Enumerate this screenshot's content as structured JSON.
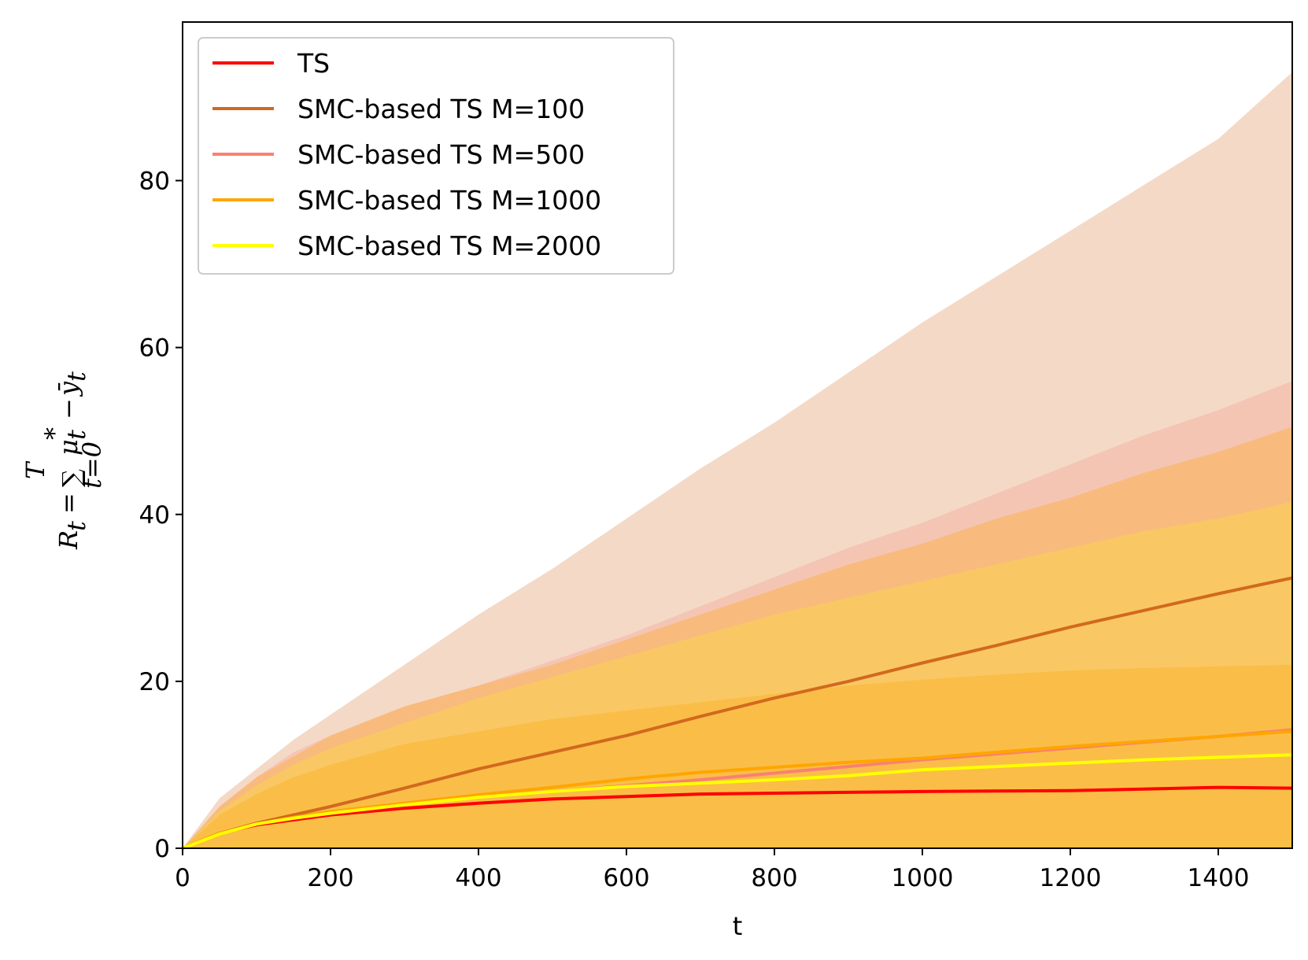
{
  "chart_data": {
    "type": "line",
    "title": "",
    "xlabel": "t",
    "ylabel": "R_t = Σ_{t=0}^{T} μ_t* − ȳ_t",
    "ylabel_parts": {
      "lhs": "R",
      "lhs_sub": "t",
      "eq": "=",
      "sum": "∑",
      "sum_top": "T",
      "sum_bottom": "t=0",
      "mu": "μ",
      "mu_sub": "t",
      "mu_sup": "*",
      "minus": "−",
      "y": "ȳ",
      "y_sub": "t"
    },
    "xlim": [
      0,
      1500
    ],
    "ylim": [
      0,
      99
    ],
    "xticks": [
      0,
      200,
      400,
      600,
      800,
      1000,
      1200,
      1400
    ],
    "yticks": [
      0,
      20,
      40,
      60,
      80
    ],
    "grid": false,
    "legend_position": "top-left",
    "x": [
      0,
      50,
      100,
      150,
      200,
      300,
      400,
      500,
      600,
      700,
      800,
      900,
      1000,
      1100,
      1200,
      1300,
      1400,
      1500
    ],
    "bands": [
      {
        "name": "SMC-based TS M=100 band",
        "color": "#D2691E",
        "opacity": 0.25,
        "upper": [
          0,
          6,
          9.5,
          13,
          16,
          22,
          28,
          33.5,
          39.5,
          45.5,
          51,
          57,
          63,
          68.5,
          74,
          79.5,
          85,
          93
        ],
        "lower": [
          0,
          0,
          0,
          0,
          0,
          0,
          0,
          0,
          0,
          0,
          0,
          0,
          0,
          0,
          0,
          0,
          0,
          0
        ]
      },
      {
        "name": "SMC-based TS M=500 band",
        "color": "#FA8072",
        "opacity": 0.22,
        "upper": [
          0,
          5,
          8.5,
          11.5,
          13.5,
          17,
          19.5,
          22.5,
          25.5,
          29,
          32.5,
          36,
          39,
          42.5,
          46,
          49.5,
          52.5,
          56
        ],
        "lower": [
          0,
          0,
          0,
          0,
          0,
          0,
          0,
          0,
          0,
          0,
          0,
          0,
          0,
          0,
          0,
          0,
          0,
          0
        ]
      },
      {
        "name": "SMC-based TS M=1000 band",
        "color": "#FFA500",
        "opacity": 0.3,
        "upper": [
          0,
          5,
          8.5,
          11,
          13.5,
          17,
          19.5,
          22,
          25,
          28,
          31,
          34,
          36.5,
          39.5,
          42,
          45,
          47.5,
          50.5
        ],
        "lower": [
          0,
          0,
          0,
          0,
          0,
          0,
          0,
          0,
          0,
          0,
          0,
          0,
          0,
          0,
          0,
          0,
          0,
          0
        ]
      },
      {
        "name": "SMC-based TS M=2000 band",
        "color": "#FFFF00",
        "opacity": 0.2,
        "upper": [
          0,
          4.5,
          7.5,
          10,
          12,
          15,
          18,
          20.5,
          23,
          25.5,
          28,
          30,
          32,
          34,
          36,
          38,
          39.5,
          41.5
        ],
        "lower": [
          0,
          0,
          0,
          0,
          0,
          0,
          0,
          0,
          0,
          0,
          0,
          0,
          0,
          0,
          0,
          0,
          0,
          0
        ]
      },
      {
        "name": "TS band",
        "color": "#FFA500",
        "opacity": 0.28,
        "upper": [
          0,
          4,
          6.5,
          8.5,
          10,
          12.5,
          14,
          15.5,
          16.5,
          17.5,
          18.5,
          19.5,
          20.2,
          20.8,
          21.3,
          21.6,
          21.8,
          22
        ],
        "lower": [
          0,
          0,
          0,
          0,
          0,
          0,
          0,
          0,
          0,
          0,
          0,
          0,
          0,
          0,
          0,
          0,
          0,
          0
        ]
      }
    ],
    "series": [
      {
        "name": "TS",
        "color": "#FF0000",
        "values": [
          0,
          1.8,
          2.8,
          3.4,
          4.0,
          4.8,
          5.4,
          5.9,
          6.2,
          6.5,
          6.6,
          6.7,
          6.8,
          6.85,
          6.9,
          7.1,
          7.3,
          7.2
        ]
      },
      {
        "name": "SMC-based TS M=100",
        "color": "#D2691E",
        "values": [
          0,
          1.8,
          3.0,
          4.0,
          5.0,
          7.2,
          9.5,
          11.5,
          13.5,
          15.8,
          18.0,
          20.0,
          22.2,
          24.3,
          26.5,
          28.5,
          30.5,
          32.4
        ]
      },
      {
        "name": "SMC-based TS M=500",
        "color": "#FA8072",
        "values": [
          0,
          1.7,
          2.9,
          3.6,
          4.3,
          5.3,
          6.1,
          6.8,
          7.5,
          8.2,
          9.0,
          9.8,
          10.6,
          11.3,
          12.0,
          12.7,
          13.4,
          14.2
        ]
      },
      {
        "name": "SMC-based TS M=1000",
        "color": "#FFA500",
        "values": [
          0,
          1.8,
          2.9,
          3.7,
          4.4,
          5.4,
          6.4,
          7.3,
          8.3,
          9.1,
          9.7,
          10.3,
          10.8,
          11.5,
          12.2,
          12.8,
          13.4,
          14.0
        ]
      },
      {
        "name": "SMC-based TS M=2000",
        "color": "#FFFF00",
        "values": [
          0,
          1.7,
          2.9,
          3.6,
          4.2,
          5.2,
          6.1,
          6.8,
          7.4,
          7.8,
          8.2,
          8.7,
          9.4,
          9.8,
          10.2,
          10.6,
          10.9,
          11.2
        ]
      }
    ]
  }
}
